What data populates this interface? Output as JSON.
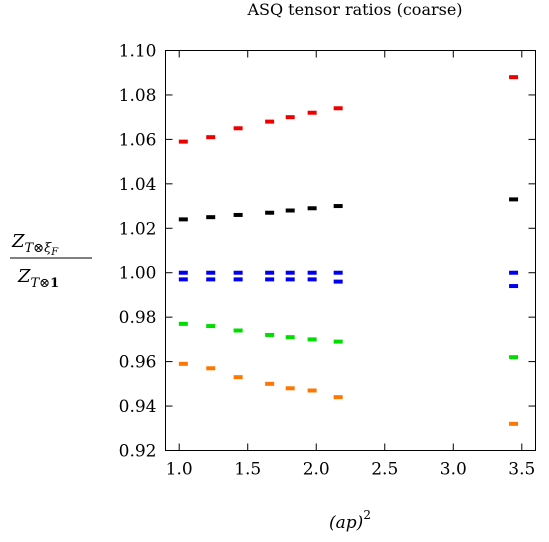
{
  "chart_data": {
    "type": "scatter",
    "title": "ASQ tensor ratios (coarse)",
    "xlabel": {
      "base": "(ap)",
      "sup": "2"
    },
    "ylabel": {
      "num_base": "Z",
      "num_sub": "T⊗ξ",
      "num_subsub": "F",
      "den_base": "Z",
      "den_sub": "T⊗",
      "den_sub_bold": "1"
    },
    "xlim": [
      0.9,
      3.6
    ],
    "ylim": [
      0.92,
      1.1
    ],
    "xticks": [
      1.0,
      1.5,
      2.0,
      2.5,
      3.0,
      3.5
    ],
    "yticks": [
      0.92,
      0.94,
      0.96,
      0.98,
      1.0,
      1.02,
      1.04,
      1.06,
      1.08,
      1.1
    ],
    "xtick_labels": [
      "1.0",
      "1.5",
      "2.0",
      "2.5",
      "3.0",
      "3.5"
    ],
    "ytick_labels": [
      "0.92",
      "0.94",
      "0.96",
      "0.98",
      "1.00",
      "1.02",
      "1.04",
      "1.06",
      "1.08",
      "1.10"
    ],
    "x": [
      1.03,
      1.23,
      1.43,
      1.66,
      1.81,
      1.97,
      2.16,
      3.44
    ],
    "series": [
      {
        "color": "#ee0000",
        "values": [
          1.059,
          1.061,
          1.065,
          1.068,
          1.07,
          1.072,
          1.074,
          1.088
        ]
      },
      {
        "color": "#000000",
        "values": [
          1.024,
          1.025,
          1.026,
          1.027,
          1.028,
          1.029,
          1.03,
          1.033
        ]
      },
      {
        "color": "#0000ee",
        "values": [
          1.0,
          1.0,
          1.0,
          1.0,
          1.0,
          1.0,
          1.0,
          1.0
        ]
      },
      {
        "color": "#0000ee",
        "values": [
          0.997,
          0.997,
          0.997,
          0.997,
          0.997,
          0.997,
          0.996,
          0.994
        ]
      },
      {
        "color": "#00dd00",
        "values": [
          0.977,
          0.976,
          0.974,
          0.972,
          0.971,
          0.97,
          0.969,
          0.962
        ]
      },
      {
        "color": "#ff7700",
        "values": [
          0.959,
          0.957,
          0.953,
          0.95,
          0.948,
          0.947,
          0.944,
          0.932
        ]
      }
    ],
    "grid": false,
    "legend": "none"
  }
}
